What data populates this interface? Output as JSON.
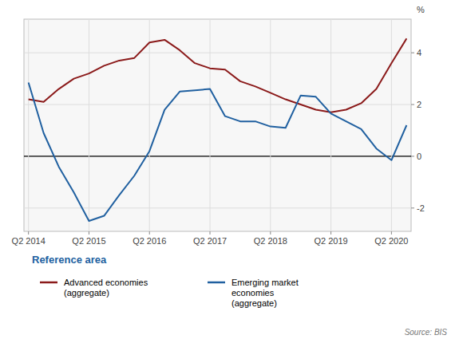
{
  "chart_data": {
    "type": "line",
    "y_label": "%",
    "legend_title": "Reference area",
    "annotations": [
      "Source: BIS"
    ],
    "categories": [
      "Q2 2014",
      null,
      null,
      null,
      "Q2 2015",
      null,
      null,
      null,
      "Q2 2016",
      null,
      null,
      null,
      "Q2 2017",
      null,
      null,
      null,
      "Q2 2018",
      null,
      null,
      null,
      "Q2 2019",
      null,
      null,
      null,
      "Q2 2020",
      null
    ],
    "series": [
      {
        "name": "Advanced economies\n(aggregate)",
        "color": "#8B1A1A",
        "values": [
          2.2,
          2.1,
          2.6,
          3.0,
          3.2,
          3.5,
          3.7,
          3.8,
          4.4,
          4.5,
          4.1,
          3.6,
          3.4,
          3.35,
          2.9,
          2.7,
          2.45,
          2.2,
          2.0,
          1.8,
          1.7,
          1.8,
          2.05,
          2.6,
          3.6,
          4.55
        ]
      },
      {
        "name": "Emerging market\neconomies\n(aggregate)",
        "color": "#2060A0",
        "values": [
          2.85,
          0.9,
          -0.4,
          -1.4,
          -2.5,
          -2.3,
          -1.5,
          -0.75,
          0.2,
          1.8,
          2.5,
          2.55,
          2.6,
          1.55,
          1.35,
          1.35,
          1.15,
          1.1,
          2.35,
          2.3,
          1.65,
          1.35,
          1.05,
          0.3,
          -0.15,
          1.2
        ]
      }
    ],
    "ylim": [
      -2.9,
      5.3
    ],
    "yticks": [
      -2,
      0,
      2,
      4
    ],
    "grid": true,
    "legend": "bottom"
  }
}
